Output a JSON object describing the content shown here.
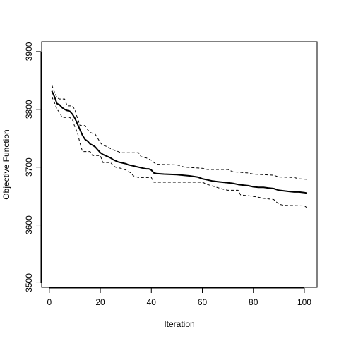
{
  "chart_data": {
    "type": "line",
    "title": "",
    "xlabel": "Iteration",
    "ylabel": "Objective Function",
    "xlim": [
      -3,
      105
    ],
    "ylim": [
      3492,
      3917
    ],
    "x_ticks": [
      0,
      20,
      40,
      60,
      80,
      100
    ],
    "y_ticks": [
      3500,
      3600,
      3700,
      3800,
      3900
    ],
    "x_tick_labels": [
      "0",
      "20",
      "40",
      "60",
      "80",
      "100"
    ],
    "y_tick_labels": [
      "3500",
      "3600",
      "3700",
      "3800",
      "3900"
    ],
    "grid": false,
    "legend": "none",
    "series": [
      {
        "style": "solid",
        "color": "#000000",
        "points": [
          [
            1,
            3832
          ],
          [
            2,
            3822
          ],
          [
            3,
            3810
          ],
          [
            4,
            3808
          ],
          [
            5,
            3803
          ],
          [
            6,
            3800
          ],
          [
            7,
            3798
          ],
          [
            8,
            3797
          ],
          [
            9,
            3792
          ],
          [
            10,
            3785
          ],
          [
            11,
            3775
          ],
          [
            12,
            3765
          ],
          [
            13,
            3755
          ],
          [
            14,
            3748
          ],
          [
            15,
            3745
          ],
          [
            16,
            3740
          ],
          [
            17,
            3738
          ],
          [
            18,
            3735
          ],
          [
            19,
            3730
          ],
          [
            20,
            3725
          ],
          [
            21,
            3722
          ],
          [
            22,
            3720
          ],
          [
            23,
            3718
          ],
          [
            24,
            3716
          ],
          [
            25,
            3713
          ],
          [
            26,
            3711
          ],
          [
            27,
            3709
          ],
          [
            28,
            3708
          ],
          [
            29,
            3707
          ],
          [
            30,
            3706
          ],
          [
            31,
            3704
          ],
          [
            32,
            3703
          ],
          [
            33,
            3702
          ],
          [
            34,
            3701
          ],
          [
            35,
            3700
          ],
          [
            36,
            3699
          ],
          [
            37,
            3698
          ],
          [
            38,
            3697
          ],
          [
            39,
            3697
          ],
          [
            40,
            3695
          ],
          [
            41,
            3690
          ],
          [
            42,
            3689
          ],
          [
            45,
            3688
          ],
          [
            50,
            3687
          ],
          [
            55,
            3685
          ],
          [
            58,
            3683
          ],
          [
            60,
            3680
          ],
          [
            62,
            3678
          ],
          [
            64,
            3676
          ],
          [
            66,
            3675
          ],
          [
            68,
            3674
          ],
          [
            70,
            3673
          ],
          [
            72,
            3672
          ],
          [
            74,
            3670
          ],
          [
            76,
            3669
          ],
          [
            78,
            3668
          ],
          [
            80,
            3666
          ],
          [
            82,
            3665
          ],
          [
            84,
            3665
          ],
          [
            86,
            3664
          ],
          [
            88,
            3663
          ],
          [
            90,
            3660
          ],
          [
            92,
            3659
          ],
          [
            94,
            3658
          ],
          [
            96,
            3657
          ],
          [
            98,
            3657
          ],
          [
            100,
            3656
          ],
          [
            101,
            3655
          ]
        ]
      },
      {
        "style": "dashed",
        "color": "#000000",
        "points": [
          [
            1,
            3842
          ],
          [
            2,
            3830
          ],
          [
            3,
            3820
          ],
          [
            4,
            3818
          ],
          [
            6,
            3818
          ],
          [
            7,
            3806
          ],
          [
            9,
            3806
          ],
          [
            10,
            3800
          ],
          [
            11,
            3785
          ],
          [
            12,
            3772
          ],
          [
            14,
            3772
          ],
          [
            15,
            3765
          ],
          [
            16,
            3760
          ],
          [
            18,
            3757
          ],
          [
            19,
            3750
          ],
          [
            20,
            3742
          ],
          [
            21,
            3738
          ],
          [
            23,
            3735
          ],
          [
            24,
            3732
          ],
          [
            25,
            3730
          ],
          [
            27,
            3727
          ],
          [
            28,
            3725
          ],
          [
            35,
            3725
          ],
          [
            36,
            3718
          ],
          [
            38,
            3716
          ],
          [
            40,
            3712
          ],
          [
            41,
            3708
          ],
          [
            42,
            3705
          ],
          [
            50,
            3704
          ],
          [
            53,
            3700
          ],
          [
            60,
            3698
          ],
          [
            62,
            3696
          ],
          [
            70,
            3696
          ],
          [
            72,
            3692
          ],
          [
            78,
            3690
          ],
          [
            80,
            3688
          ],
          [
            88,
            3686
          ],
          [
            90,
            3683
          ],
          [
            96,
            3682
          ],
          [
            98,
            3680
          ],
          [
            101,
            3679
          ]
        ]
      },
      {
        "style": "dashed",
        "color": "#000000",
        "points": [
          [
            1,
            3822
          ],
          [
            2,
            3812
          ],
          [
            3,
            3800
          ],
          [
            4,
            3795
          ],
          [
            5,
            3786
          ],
          [
            8,
            3786
          ],
          [
            9,
            3783
          ],
          [
            10,
            3770
          ],
          [
            11,
            3760
          ],
          [
            12,
            3742
          ],
          [
            13,
            3727
          ],
          [
            16,
            3727
          ],
          [
            17,
            3720
          ],
          [
            20,
            3720
          ],
          [
            21,
            3708
          ],
          [
            24,
            3708
          ],
          [
            25,
            3703
          ],
          [
            26,
            3700
          ],
          [
            28,
            3698
          ],
          [
            30,
            3695
          ],
          [
            32,
            3690
          ],
          [
            33,
            3685
          ],
          [
            35,
            3682
          ],
          [
            40,
            3682
          ],
          [
            41,
            3674
          ],
          [
            60,
            3674
          ],
          [
            62,
            3670
          ],
          [
            65,
            3666
          ],
          [
            68,
            3662
          ],
          [
            70,
            3660
          ],
          [
            74,
            3660
          ],
          [
            75,
            3652
          ],
          [
            79,
            3650
          ],
          [
            82,
            3648
          ],
          [
            84,
            3646
          ],
          [
            88,
            3644
          ],
          [
            90,
            3636
          ],
          [
            92,
            3634
          ],
          [
            100,
            3633
          ],
          [
            101,
            3630
          ]
        ]
      }
    ]
  }
}
